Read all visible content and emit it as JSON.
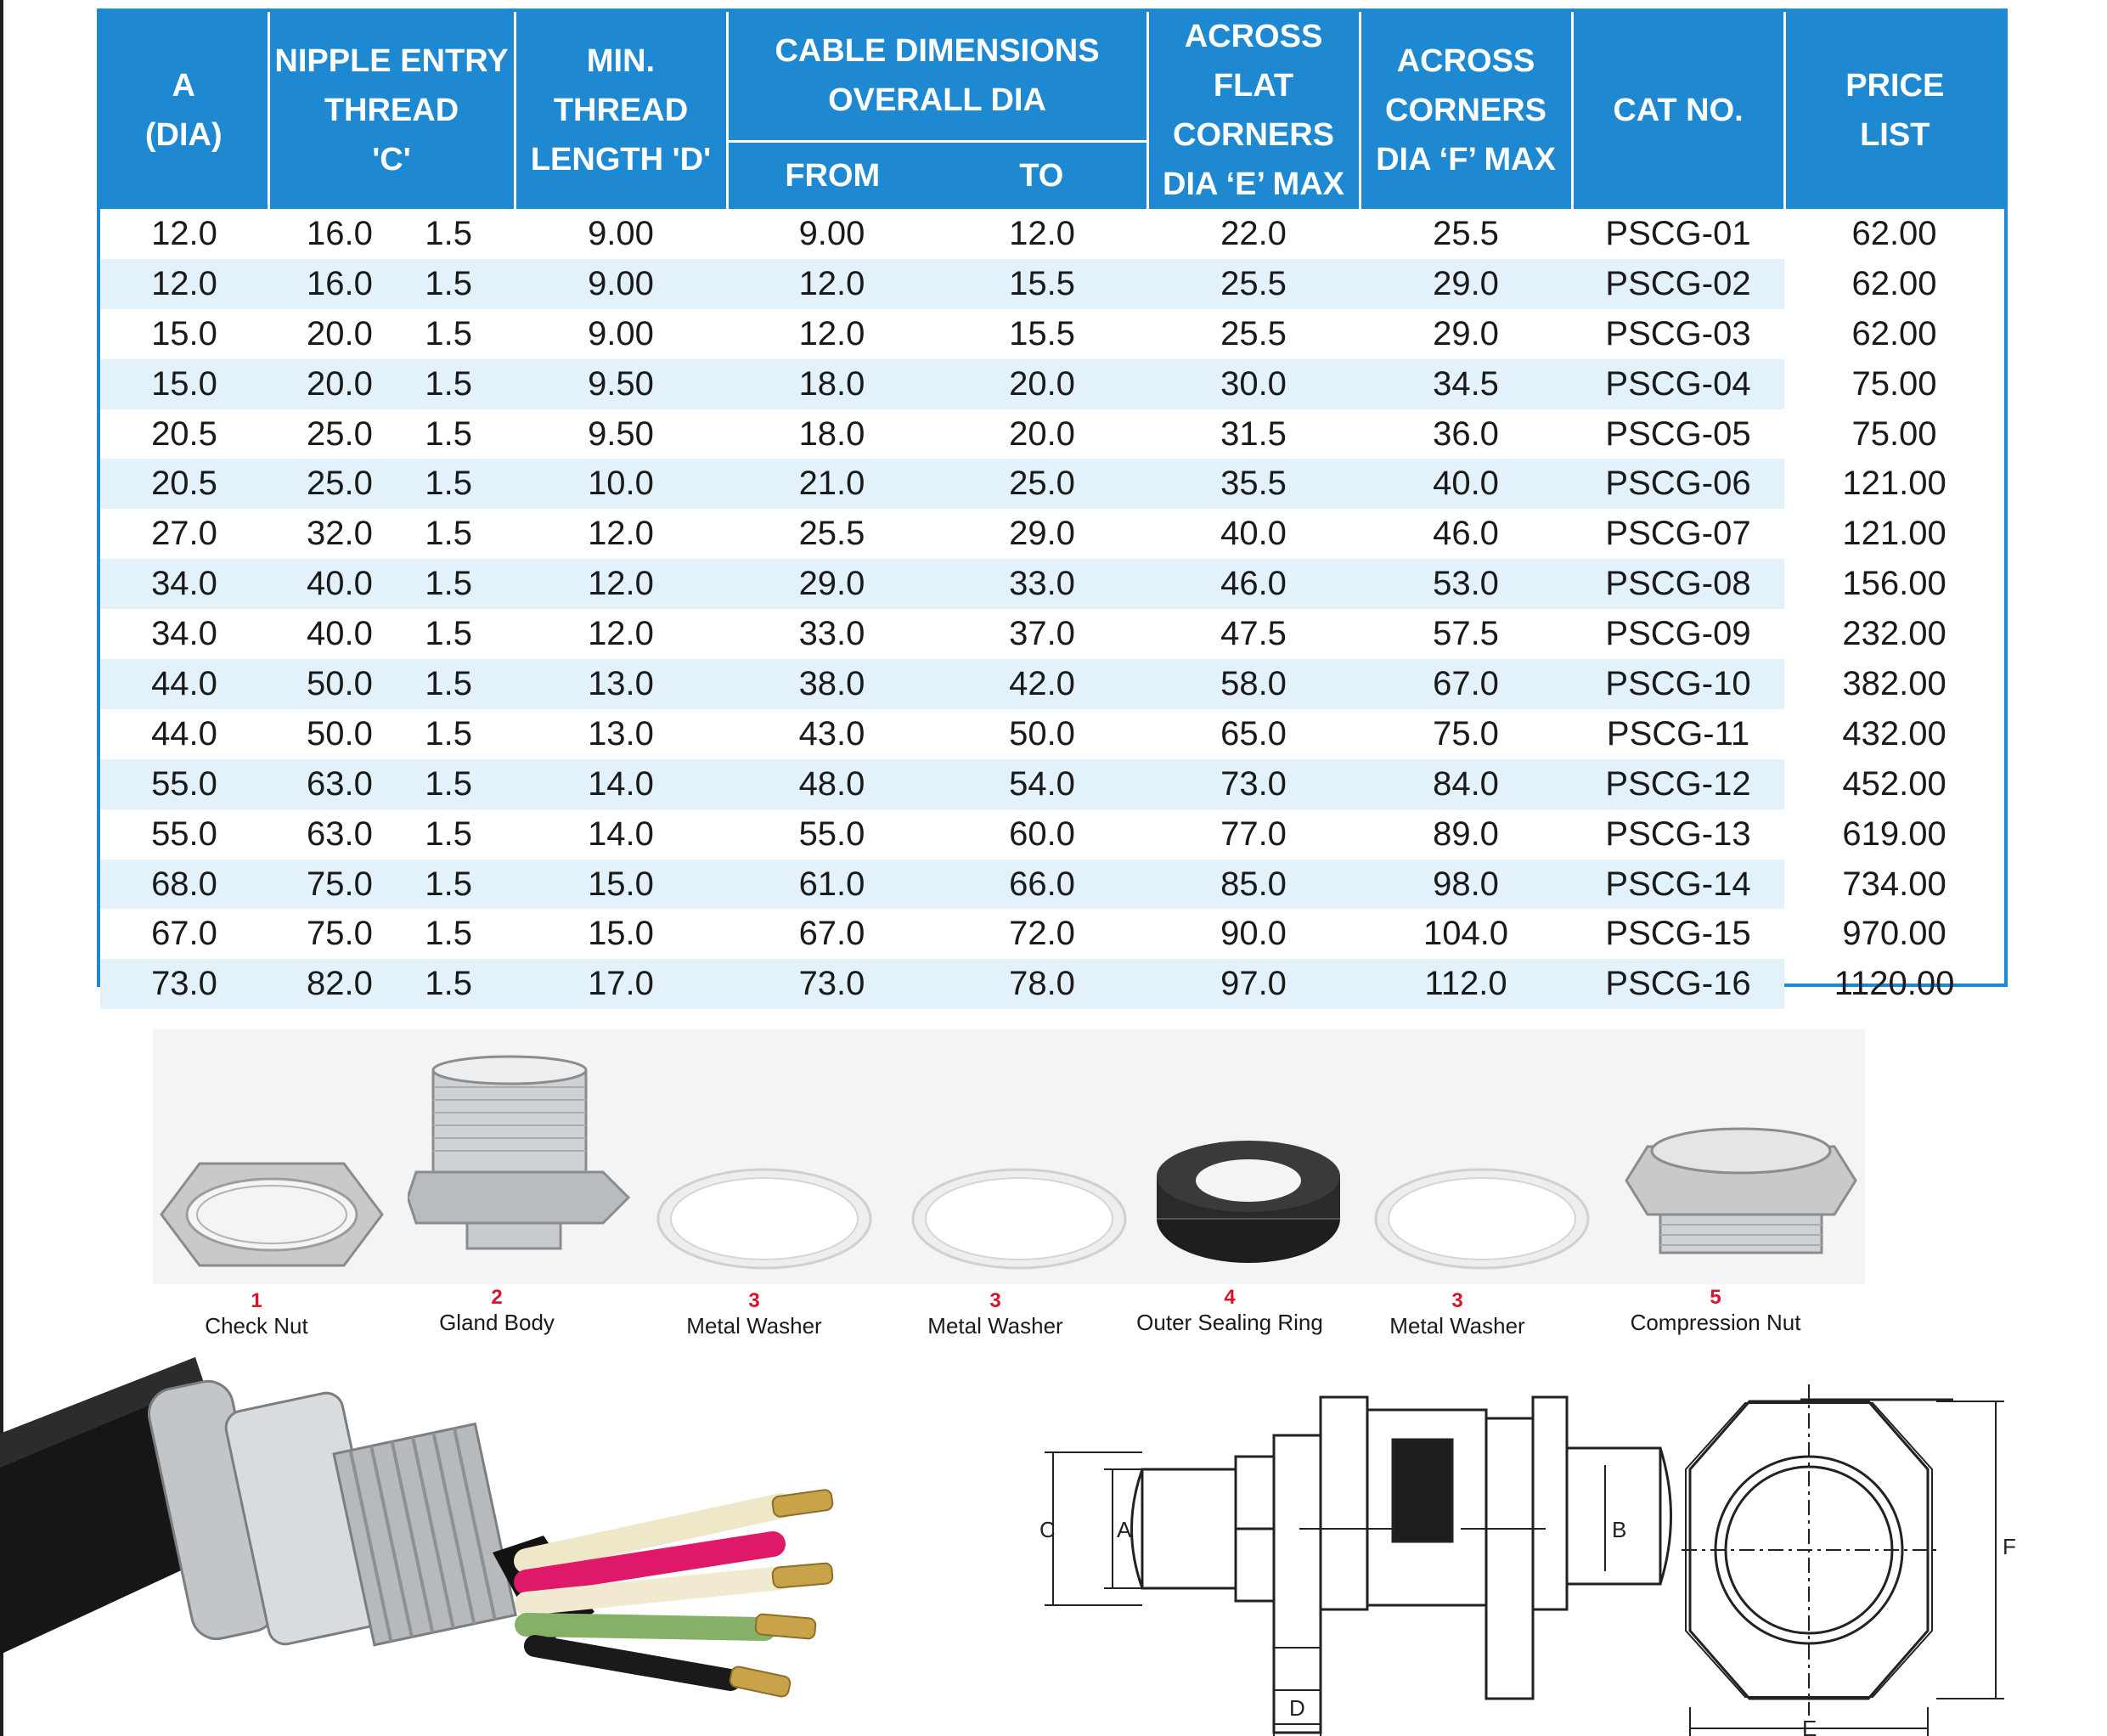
{
  "table": {
    "headers": {
      "a": [
        "A",
        "(DIA)"
      ],
      "nipple": [
        "NIPPLE ENTRY",
        "THREAD",
        "'C'"
      ],
      "min_thread": [
        "MIN.",
        "THREAD",
        "LENGTH 'D'"
      ],
      "cable": [
        "CABLE DIMENSIONS",
        "OVERALL DIA"
      ],
      "from": "FROM",
      "to": "TO",
      "flat": [
        "ACROSS FLAT",
        "CORNERS",
        "DIA ‘E’ MAX"
      ],
      "corners": [
        "ACROSS",
        "CORNERS",
        "DIA ‘F’ MAX"
      ],
      "cat": "CAT NO.",
      "price": [
        "PRICE",
        "LIST"
      ]
    },
    "rows": [
      [
        "12.0",
        "16.0",
        "1.5",
        "9.00",
        "9.00",
        "12.0",
        "22.0",
        "25.5",
        "PSCG-01",
        "62.00"
      ],
      [
        "12.0",
        "16.0",
        "1.5",
        "9.00",
        "12.0",
        "15.5",
        "25.5",
        "29.0",
        "PSCG-02",
        "62.00"
      ],
      [
        "15.0",
        "20.0",
        "1.5",
        "9.00",
        "12.0",
        "15.5",
        "25.5",
        "29.0",
        "PSCG-03",
        "62.00"
      ],
      [
        "15.0",
        "20.0",
        "1.5",
        "9.50",
        "18.0",
        "20.0",
        "30.0",
        "34.5",
        "PSCG-04",
        "75.00"
      ],
      [
        "20.5",
        "25.0",
        "1.5",
        "9.50",
        "18.0",
        "20.0",
        "31.5",
        "36.0",
        "PSCG-05",
        "75.00"
      ],
      [
        "20.5",
        "25.0",
        "1.5",
        "10.0",
        "21.0",
        "25.0",
        "35.5",
        "40.0",
        "PSCG-06",
        "121.00"
      ],
      [
        "27.0",
        "32.0",
        "1.5",
        "12.0",
        "25.5",
        "29.0",
        "40.0",
        "46.0",
        "PSCG-07",
        "121.00"
      ],
      [
        "34.0",
        "40.0",
        "1.5",
        "12.0",
        "29.0",
        "33.0",
        "46.0",
        "53.0",
        "PSCG-08",
        "156.00"
      ],
      [
        "34.0",
        "40.0",
        "1.5",
        "12.0",
        "33.0",
        "37.0",
        "47.5",
        "57.5",
        "PSCG-09",
        "232.00"
      ],
      [
        "44.0",
        "50.0",
        "1.5",
        "13.0",
        "38.0",
        "42.0",
        "58.0",
        "67.0",
        "PSCG-10",
        "382.00"
      ],
      [
        "44.0",
        "50.0",
        "1.5",
        "13.0",
        "43.0",
        "50.0",
        "65.0",
        "75.0",
        "PSCG-11",
        "432.00"
      ],
      [
        "55.0",
        "63.0",
        "1.5",
        "14.0",
        "48.0",
        "54.0",
        "73.0",
        "84.0",
        "PSCG-12",
        "452.00"
      ],
      [
        "55.0",
        "63.0",
        "1.5",
        "14.0",
        "55.0",
        "60.0",
        "77.0",
        "89.0",
        "PSCG-13",
        "619.00"
      ],
      [
        "68.0",
        "75.0",
        "1.5",
        "15.0",
        "61.0",
        "66.0",
        "85.0",
        "98.0",
        "PSCG-14",
        "734.00"
      ],
      [
        "67.0",
        "75.0",
        "1.5",
        "15.0",
        "67.0",
        "72.0",
        "90.0",
        "104.0",
        "PSCG-15",
        "970.00"
      ],
      [
        "73.0",
        "82.0",
        "1.5",
        "17.0",
        "73.0",
        "78.0",
        "97.0",
        "112.0",
        "PSCG-16",
        "1120.00"
      ]
    ]
  },
  "parts": [
    {
      "num": "1",
      "name": "Check Nut",
      "icon": "hex-nut-icon"
    },
    {
      "num": "2",
      "name": "Gland Body",
      "icon": "gland-body-icon"
    },
    {
      "num": "3",
      "name": "Metal Washer",
      "icon": "washer-icon"
    },
    {
      "num": "3",
      "name": "Metal Washer",
      "icon": "washer-icon"
    },
    {
      "num": "4",
      "name": "Outer  Sealing Ring",
      "icon": "sealing-ring-icon"
    },
    {
      "num": "3",
      "name": "Metal Washer",
      "icon": "washer-icon"
    },
    {
      "num": "5",
      "name": "Compression Nut",
      "icon": "compression-nut-icon"
    }
  ],
  "drawing": {
    "labels": {
      "a": "A",
      "b": "B",
      "c": "C",
      "d": "D",
      "e": "E",
      "f": "F"
    }
  },
  "colors": {
    "header_blue": "#1e88d0",
    "row_shade": "#e3f1fb",
    "part_number_red": "#d8142a"
  }
}
